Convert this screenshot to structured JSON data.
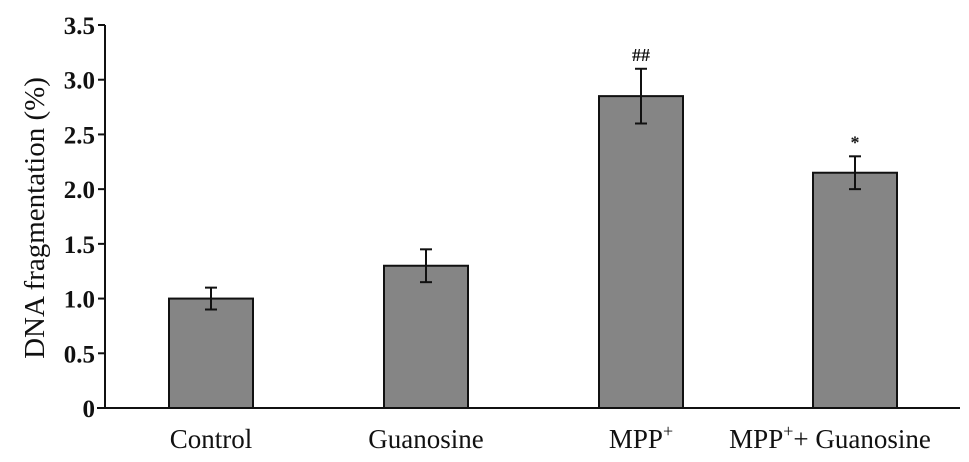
{
  "chart_data": {
    "type": "bar",
    "title": "",
    "xlabel": "",
    "ylabel": "DNA fragmentation (%)",
    "ylim": [
      0,
      3.5
    ],
    "yticks": [
      "0",
      "0.5",
      "1.0",
      "1.5",
      "2.0",
      "2.5",
      "3.0",
      "3.5"
    ],
    "yticks_values": [
      0,
      0.5,
      1.0,
      1.5,
      2.0,
      2.5,
      3.0,
      3.5
    ],
    "categories": [
      {
        "base": "Control",
        "sup": "",
        "suffix": ""
      },
      {
        "base": "Guanosine",
        "sup": "",
        "suffix": ""
      },
      {
        "base": "MPP",
        "sup": "+",
        "suffix": ""
      },
      {
        "base": "MPP",
        "sup": "+",
        "suffix": "+ Guanosine"
      }
    ],
    "values": [
      1.0,
      1.3,
      2.85,
      2.15
    ],
    "errors": [
      0.1,
      0.15,
      0.25,
      0.15
    ],
    "annotations": [
      "",
      "",
      "##",
      "*"
    ],
    "grid": false,
    "colors": {
      "bar": "#858585",
      "edge": "#111111"
    }
  }
}
